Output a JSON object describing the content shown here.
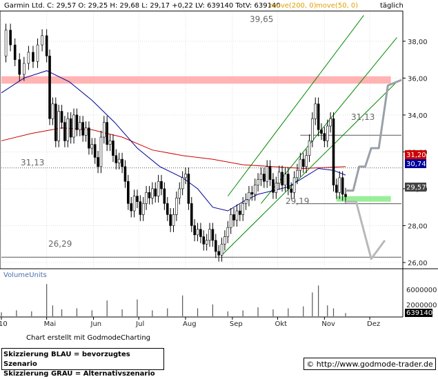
{
  "header": {
    "quote": "Garmin Ltd.  C: 29,57  O: 29,25  H: 29,68  L: 29,17  +0,22  LV: 639140  TotV: 639140",
    "ma200": "move(200, 0)",
    "ma50": "move(50, 0)",
    "period": "täglich"
  },
  "colors": {
    "price": "#000000",
    "ma200": "#cc0000",
    "ma50": "#000099",
    "channel": "#008800",
    "resistance_zone": "#ffb3b3",
    "support_zone": "#99ee99",
    "blue_scenario": "#9aa0a8",
    "grey_scenario": "#b8b8b8",
    "price_tag_red": "#cc0000",
    "price_tag_blue": "#000099",
    "price_tag_current": "#444444"
  },
  "levels": {
    "high_label": "39,65",
    "top_level": "31,13",
    "top_level_left": "31,13",
    "low_level": "29,19",
    "bottom_label": "26,29"
  },
  "price_tags": {
    "ma200": "31,20",
    "ma50": "30,74",
    "current": "29,57"
  },
  "volume": {
    "title": "VolumeUnits",
    "ticks": [
      "6000000",
      "2000000"
    ],
    "current": "639140"
  },
  "footer": {
    "credit": "Chart erstellt mit GodmodeCharting",
    "legend_blue": "Skizzierung BLAU = bevorzugtes Szenario",
    "legend_grey": "Skizzierung GRAU = Alternativszenario",
    "url": "http://www.godmode-trader.de"
  },
  "chart_data": {
    "type": "candlestick",
    "y_ticks": [
      "26,00",
      "28,00",
      "30,00",
      "32,00",
      "34,00",
      "36,00",
      "38,00"
    ],
    "y_tick_values": [
      26,
      28,
      30,
      32,
      34,
      36,
      38
    ],
    "ylim": [
      25.7,
      39.6
    ],
    "x_labels": [
      "10",
      "Mai",
      "Jun",
      "Jul",
      "Aug",
      "Sep",
      "Okt",
      "Nov",
      "Dez"
    ],
    "x_label_days": [
      0,
      30,
      61,
      91,
      122,
      153,
      183,
      214,
      244
    ],
    "xlim": [
      0,
      265
    ],
    "price_series": [
      [
        0,
        37.2
      ],
      [
        3,
        38.6
      ],
      [
        6,
        37.8
      ],
      [
        9,
        37.0
      ],
      [
        12,
        36.2
      ],
      [
        15,
        36.8
      ],
      [
        18,
        37.4
      ],
      [
        21,
        36.9
      ],
      [
        24,
        37.8
      ],
      [
        27,
        38.3
      ],
      [
        30,
        37.2
      ],
      [
        32,
        33.8
      ],
      [
        34,
        34.6
      ],
      [
        36,
        32.6
      ],
      [
        38,
        34.2
      ],
      [
        40,
        33.6
      ],
      [
        42,
        32.6
      ],
      [
        44,
        33.8
      ],
      [
        46,
        32.8
      ],
      [
        48,
        34.0
      ],
      [
        50,
        33.2
      ],
      [
        52,
        33.6
      ],
      [
        54,
        32.9
      ],
      [
        56,
        33.3
      ],
      [
        58,
        32.2
      ],
      [
        60,
        32.4
      ],
      [
        62,
        31.7
      ],
      [
        64,
        31.2
      ],
      [
        66,
        32.8
      ],
      [
        68,
        33.6
      ],
      [
        70,
        32.4
      ],
      [
        72,
        32.6
      ],
      [
        74,
        31.8
      ],
      [
        76,
        31.4
      ],
      [
        78,
        31.6
      ],
      [
        80,
        31.2
      ],
      [
        82,
        30.4
      ],
      [
        84,
        29.2
      ],
      [
        86,
        28.8
      ],
      [
        88,
        29.6
      ],
      [
        90,
        29.3
      ],
      [
        92,
        28.6
      ],
      [
        94,
        29.2
      ],
      [
        96,
        29.8
      ],
      [
        98,
        29.5
      ],
      [
        100,
        30.0
      ],
      [
        102,
        29.6
      ],
      [
        104,
        30.4
      ],
      [
        106,
        30.0
      ],
      [
        108,
        29.2
      ],
      [
        110,
        28.6
      ],
      [
        112,
        28.0
      ],
      [
        114,
        28.6
      ],
      [
        116,
        29.5
      ],
      [
        118,
        30.0
      ],
      [
        120,
        30.6
      ],
      [
        122,
        30.8
      ],
      [
        124,
        29.2
      ],
      [
        126,
        28.0
      ],
      [
        128,
        27.5
      ],
      [
        130,
        27.8
      ],
      [
        132,
        27.4
      ],
      [
        134,
        27.0
      ],
      [
        136,
        27.2
      ],
      [
        138,
        27.8
      ],
      [
        140,
        27.2
      ],
      [
        142,
        26.6
      ],
      [
        144,
        26.4
      ],
      [
        146,
        27.0
      ],
      [
        148,
        27.4
      ],
      [
        150,
        27.9
      ],
      [
        152,
        28.6
      ],
      [
        154,
        28.3
      ],
      [
        156,
        28.8
      ],
      [
        158,
        28.6
      ],
      [
        160,
        29.2
      ],
      [
        162,
        29.4
      ],
      [
        164,
        29.8
      ],
      [
        166,
        29.7
      ],
      [
        168,
        30.2
      ],
      [
        170,
        30.5
      ],
      [
        172,
        30.8
      ],
      [
        174,
        30.4
      ],
      [
        176,
        31.2
      ],
      [
        178,
        30.5
      ],
      [
        180,
        29.8
      ],
      [
        182,
        30.3
      ],
      [
        184,
        30.9
      ],
      [
        186,
        30.2
      ],
      [
        188,
        30.8
      ],
      [
        190,
        30.0
      ],
      [
        192,
        29.8
      ],
      [
        194,
        30.6
      ],
      [
        196,
        31.0
      ],
      [
        198,
        31.6
      ],
      [
        200,
        31.2
      ],
      [
        202,
        31.8
      ],
      [
        204,
        32.6
      ],
      [
        206,
        33.8
      ],
      [
        208,
        34.6
      ],
      [
        210,
        33.2
      ],
      [
        212,
        33.0
      ],
      [
        214,
        32.6
      ],
      [
        216,
        33.4
      ],
      [
        218,
        33.8
      ],
      [
        220,
        30.2
      ],
      [
        222,
        29.8
      ],
      [
        224,
        30.6
      ],
      [
        226,
        29.7
      ],
      [
        228,
        29.57
      ]
    ],
    "ma200_series": [
      [
        0,
        32.6
      ],
      [
        20,
        33.0
      ],
      [
        40,
        33.3
      ],
      [
        60,
        33.2
      ],
      [
        80,
        32.8
      ],
      [
        100,
        32.1
      ],
      [
        120,
        31.8
      ],
      [
        140,
        31.6
      ],
      [
        160,
        31.3
      ],
      [
        180,
        31.2
      ],
      [
        200,
        31.1
      ],
      [
        228,
        31.2
      ]
    ],
    "ma50_series": [
      [
        0,
        35.2
      ],
      [
        15,
        36.0
      ],
      [
        30,
        36.4
      ],
      [
        45,
        35.8
      ],
      [
        60,
        34.8
      ],
      [
        75,
        33.6
      ],
      [
        90,
        32.2
      ],
      [
        105,
        31.2
      ],
      [
        120,
        30.6
      ],
      [
        130,
        30.0
      ],
      [
        140,
        29.0
      ],
      [
        150,
        28.8
      ],
      [
        160,
        29.3
      ],
      [
        170,
        29.7
      ],
      [
        180,
        29.9
      ],
      [
        190,
        30.1
      ],
      [
        200,
        30.6
      ],
      [
        210,
        31.1
      ],
      [
        220,
        31.0
      ],
      [
        228,
        30.74
      ]
    ],
    "channel_lines": [
      {
        "name": "lower",
        "points": [
          [
            146,
            26.4
          ],
          [
            262,
            35.8
          ]
        ]
      },
      {
        "name": "upper",
        "points": [
          [
            150,
            29.6
          ],
          [
            240,
            39.4
          ]
        ]
      },
      {
        "name": "inner",
        "points": [
          [
            172,
            29.2
          ],
          [
            262,
            38.2
          ]
        ]
      }
    ],
    "horizontal_lines": [
      {
        "value": 31.13,
        "x_range": [
          0,
          265
        ],
        "style": "dotted"
      },
      {
        "value": 32.9,
        "x_range": [
          198,
          265
        ],
        "style": "solid"
      },
      {
        "value": 29.19,
        "x_range": [
          195,
          265
        ],
        "style": "solid"
      },
      {
        "value": 26.29,
        "x_range": [
          0,
          265
        ],
        "style": "solid"
      }
    ],
    "zones": [
      {
        "name": "resistance",
        "y_range": [
          35.7,
          36.1
        ],
        "x_range": [
          0,
          258
        ]
      },
      {
        "name": "support",
        "y_range": [
          29.3,
          29.6
        ],
        "x_range": [
          222,
          258
        ]
      }
    ],
    "scenario_blue": [
      [
        228,
        29.9
      ],
      [
        233,
        29.9
      ],
      [
        237,
        31.2
      ],
      [
        241,
        31.2
      ],
      [
        245,
        32.2
      ],
      [
        250,
        32.2
      ],
      [
        256,
        35.6
      ],
      [
        265,
        35.9
      ]
    ],
    "scenario_grey": [
      [
        228,
        29.3
      ],
      [
        235,
        29.3
      ],
      [
        245,
        26.2
      ],
      [
        254,
        27.2
      ]
    ],
    "volume_series": [
      [
        0,
        0.8
      ],
      [
        10,
        1.2
      ],
      [
        20,
        1.0
      ],
      [
        30,
        6.5
      ],
      [
        34,
        2.2
      ],
      [
        40,
        1.4
      ],
      [
        50,
        1.6
      ],
      [
        60,
        1.2
      ],
      [
        70,
        3.2
      ],
      [
        80,
        1.4
      ],
      [
        90,
        3.4
      ],
      [
        100,
        1.2
      ],
      [
        110,
        1.6
      ],
      [
        120,
        4.2
      ],
      [
        130,
        1.6
      ],
      [
        140,
        2.4
      ],
      [
        150,
        1.0
      ],
      [
        160,
        1.2
      ],
      [
        170,
        1.8
      ],
      [
        180,
        1.4
      ],
      [
        190,
        1.6
      ],
      [
        200,
        2.0
      ],
      [
        206,
        4.8
      ],
      [
        210,
        6.2
      ],
      [
        216,
        2.2
      ],
      [
        220,
        1.6
      ],
      [
        228,
        0.64
      ]
    ],
    "volume_ylim": [
      0,
      7.5
    ]
  }
}
